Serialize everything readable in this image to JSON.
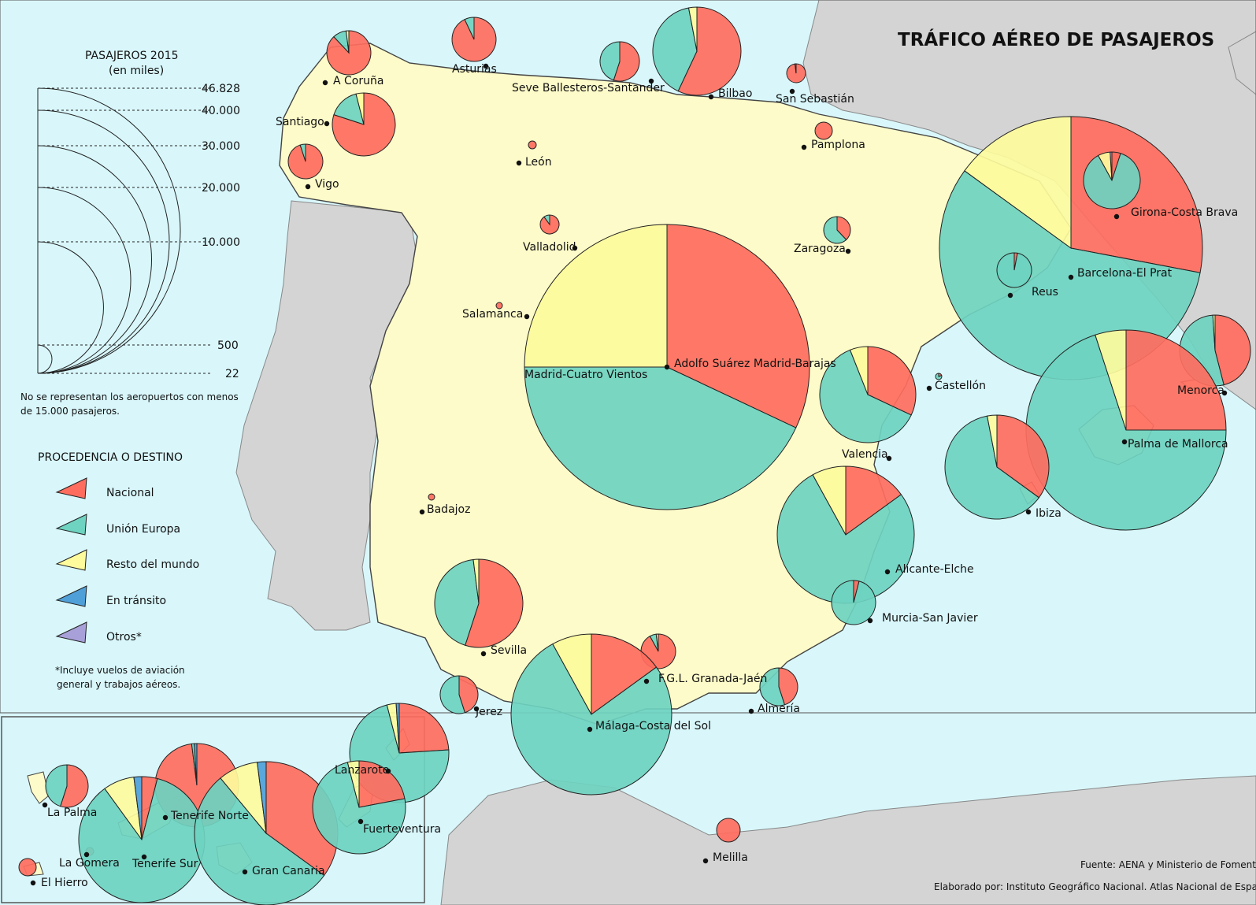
{
  "title": "TRÁFICO AÉREO DE PASAJEROS",
  "legend_size": {
    "title": "PASAJEROS 2015",
    "subtitle": "(en miles)",
    "values": [
      "46.828",
      "40.000",
      "30.000",
      "20.000",
      "10.000",
      "500",
      "22"
    ],
    "note": [
      "No se representan los aeropuertos con menos",
      "de 15.000 pasajeros."
    ]
  },
  "legend_origin": {
    "title": "PROCEDENCIA O DESTINO",
    "items": [
      {
        "label": "Nacional",
        "color": "#ff6d5e"
      },
      {
        "label": "Unión Europa",
        "color": "#6ed3c0"
      },
      {
        "label": "Resto del mundo",
        "color": "#fdfb9c"
      },
      {
        "label": "En tránsito",
        "color": "#4f9fd8"
      },
      {
        "label": "Otros*",
        "color": "#a8a0d8"
      }
    ],
    "footnote": [
      "*Incluye vuelos de aviación",
      "general y trabajos aéreos."
    ]
  },
  "airports": [
    {
      "name": "A Coruña",
      "shares": [
        0.88,
        0.1,
        0.02,
        0,
        0
      ]
    },
    {
      "name": "Asturias",
      "shares": [
        0.93,
        0.07,
        0,
        0,
        0
      ]
    },
    {
      "name": "Seve Ballesteros-Santander",
      "shares": [
        0.55,
        0.45,
        0,
        0,
        0
      ]
    },
    {
      "name": "Bilbao",
      "shares": [
        0.57,
        0.4,
        0.03,
        0,
        0
      ]
    },
    {
      "name": "San Sebastián",
      "shares": [
        0.98,
        0.02,
        0,
        0,
        0
      ]
    },
    {
      "name": "Santiago",
      "shares": [
        0.8,
        0.16,
        0.04,
        0,
        0
      ]
    },
    {
      "name": "Vigo",
      "shares": [
        0.95,
        0.05,
        0,
        0,
        0
      ]
    },
    {
      "name": "León",
      "shares": [
        1,
        0,
        0,
        0,
        0
      ]
    },
    {
      "name": "Pamplona",
      "shares": [
        1,
        0,
        0,
        0,
        0
      ]
    },
    {
      "name": "Valladolid",
      "shares": [
        0.9,
        0.1,
        0,
        0,
        0
      ]
    },
    {
      "name": "Zaragoza",
      "shares": [
        0.38,
        0.62,
        0,
        0,
        0
      ]
    },
    {
      "name": "Salamanca",
      "shares": [
        1,
        0,
        0,
        0,
        0
      ]
    },
    {
      "name": "Adolfo Suárez Madrid-Barajas",
      "shares": [
        0.32,
        0.43,
        0.25,
        0,
        0
      ]
    },
    {
      "name": "Madrid-Cuatro Vientos",
      "shares": [
        1,
        0,
        0,
        0,
        0
      ]
    },
    {
      "name": "Barcelona-El Prat",
      "shares": [
        0.28,
        0.57,
        0.15,
        0,
        0
      ]
    },
    {
      "name": "Girona-Costa Brava",
      "shares": [
        0.05,
        0.87,
        0.07,
        0,
        0.01
      ]
    },
    {
      "name": "Reus",
      "shares": [
        0.03,
        0.97,
        0,
        0,
        0
      ]
    },
    {
      "name": "Castellón",
      "shares": [
        0.2,
        0.8,
        0,
        0,
        0
      ]
    },
    {
      "name": "Valencia",
      "shares": [
        0.32,
        0.62,
        0.06,
        0,
        0
      ]
    },
    {
      "name": "Menorca",
      "shares": [
        0.46,
        0.53,
        0.01,
        0,
        0
      ]
    },
    {
      "name": "Palma de Mallorca",
      "shares": [
        0.25,
        0.7,
        0.05,
        0,
        0
      ]
    },
    {
      "name": "Ibiza",
      "shares": [
        0.35,
        0.62,
        0.03,
        0,
        0
      ]
    },
    {
      "name": "Badajoz",
      "shares": [
        1,
        0,
        0,
        0,
        0
      ]
    },
    {
      "name": "Alicante-Elche",
      "shares": [
        0.15,
        0.77,
        0.08,
        0,
        0
      ]
    },
    {
      "name": "Murcia-San Javier",
      "shares": [
        0.04,
        0.96,
        0,
        0,
        0
      ]
    },
    {
      "name": "Sevilla",
      "shares": [
        0.55,
        0.43,
        0.02,
        0,
        0
      ]
    },
    {
      "name": "Jerez",
      "shares": [
        0.45,
        0.55,
        0,
        0,
        0
      ]
    },
    {
      "name": "F.G.L. Granada-Jaén",
      "shares": [
        0.92,
        0.06,
        0.02,
        0,
        0
      ]
    },
    {
      "name": "Málaga-Costa del Sol",
      "shares": [
        0.15,
        0.77,
        0.08,
        0,
        0
      ]
    },
    {
      "name": "Almería",
      "shares": [
        0.45,
        0.55,
        0,
        0,
        0
      ]
    },
    {
      "name": "Melilla",
      "shares": [
        1,
        0,
        0,
        0,
        0
      ]
    },
    {
      "name": "La Palma",
      "shares": [
        0.55,
        0.45,
        0,
        0,
        0
      ]
    },
    {
      "name": "La Gomera",
      "shares": [
        1,
        0,
        0,
        0,
        0
      ]
    },
    {
      "name": "El Hierro",
      "shares": [
        1,
        0,
        0,
        0,
        0
      ]
    },
    {
      "name": "Tenerife Norte",
      "shares": [
        0.98,
        0.01,
        0,
        0.01,
        0
      ]
    },
    {
      "name": "Tenerife Sur",
      "shares": [
        0.04,
        0.86,
        0.08,
        0.02,
        0
      ]
    },
    {
      "name": "Gran Canaria",
      "shares": [
        0.35,
        0.54,
        0.09,
        0.02,
        0
      ]
    },
    {
      "name": "Lanzarote",
      "shares": [
        0.24,
        0.72,
        0.03,
        0.01,
        0
      ]
    },
    {
      "name": "Fuerteventura",
      "shares": [
        0.22,
        0.74,
        0.04,
        0,
        0
      ]
    }
  ],
  "source": "Fuente: AENA y Ministerio de Fomento",
  "credit": "Elaborado por: Instituto Geográfico Nacional. Atlas Nacional de España"
}
